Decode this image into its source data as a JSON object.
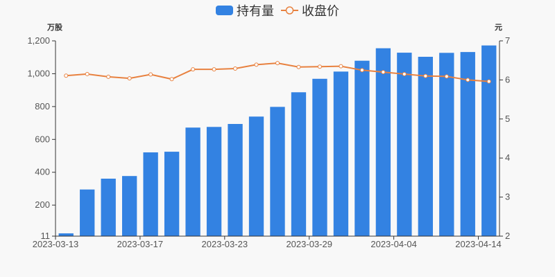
{
  "legend": {
    "items": [
      {
        "label": "持有量",
        "type": "bar",
        "color": "#3382e2"
      },
      {
        "label": "收盘价",
        "type": "line",
        "color": "#e8813f"
      }
    ]
  },
  "axes": {
    "left_name": "万股",
    "right_name": "元",
    "left_ticks": [
      "11",
      "200",
      "400",
      "600",
      "800",
      "1,000",
      "1,200"
    ],
    "right_ticks": [
      "2",
      "3",
      "4",
      "5",
      "6",
      "7"
    ],
    "x_tick_labels": [
      {
        "index": 0,
        "label": "2023-03-13"
      },
      {
        "index": 4,
        "label": "2023-03-17"
      },
      {
        "index": 8,
        "label": "2023-03-23"
      },
      {
        "index": 12,
        "label": "2023-03-29"
      },
      {
        "index": 16,
        "label": "2023-04-04"
      },
      {
        "index": 20,
        "label": "2023-04-14"
      }
    ]
  },
  "colors": {
    "bar": "#3382e2",
    "line": "#e8813f",
    "axis": "#333333",
    "text": "#555555",
    "background": "#f8f8f8"
  },
  "chart_data": {
    "type": "bar",
    "title": "",
    "categories": [
      "2023-03-13",
      "2023-03-14",
      "2023-03-15",
      "2023-03-16",
      "2023-03-17",
      "2023-03-20",
      "2023-03-21",
      "2023-03-22",
      "2023-03-23",
      "2023-03-24",
      "2023-03-27",
      "2023-03-28",
      "2023-03-29",
      "2023-03-30",
      "2023-03-31",
      "2023-04-03",
      "2023-04-04",
      "2023-04-06",
      "2023-04-10",
      "2023-04-12",
      "2023-04-14"
    ],
    "series": [
      {
        "name": "持有量",
        "type": "bar",
        "axis": "left",
        "unit": "万股",
        "values": [
          28,
          295,
          361,
          377,
          521,
          525,
          672,
          676,
          694,
          739,
          798,
          887,
          969,
          1013,
          1079,
          1155,
          1128,
          1103,
          1127,
          1132,
          1172
        ]
      },
      {
        "name": "收盘价",
        "type": "line",
        "axis": "right",
        "unit": "元",
        "values": [
          6.11,
          6.15,
          6.08,
          6.04,
          6.14,
          6.02,
          6.27,
          6.27,
          6.29,
          6.39,
          6.43,
          6.33,
          6.34,
          6.35,
          6.25,
          6.2,
          6.15,
          6.1,
          6.09,
          6.0,
          5.96
        ]
      }
    ],
    "xlabel": "",
    "ylabel": "万股",
    "ylabel_right": "元",
    "ylim": [
      11,
      1200
    ],
    "ylim_right": [
      2,
      7
    ],
    "grid": false,
    "legend_position": "top-center"
  }
}
